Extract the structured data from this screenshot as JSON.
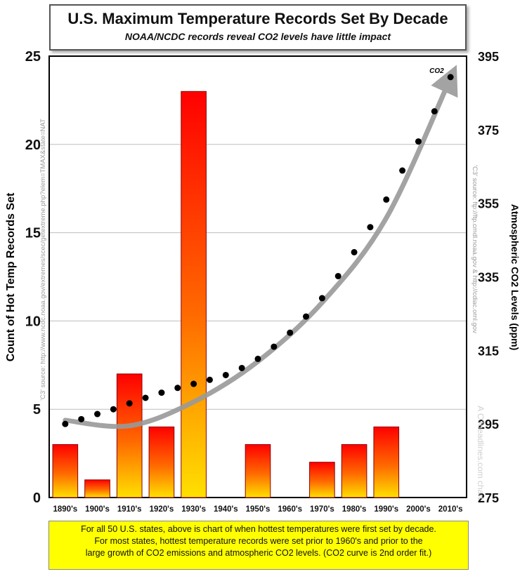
{
  "chart_data": {
    "type": "bar",
    "title": "U.S. Maximum Temperature Records Set By Decade",
    "subtitle": "NOAA/NCDC records reveal CO2 levels have little impact",
    "categories": [
      "1890's",
      "1900's",
      "1910's",
      "1920's",
      "1930's",
      "1940's",
      "1950's",
      "1960's",
      "1970's",
      "1980's",
      "1990's",
      "2000's",
      "2010's"
    ],
    "values": [
      3,
      1,
      7,
      4,
      23,
      0,
      3,
      0,
      2,
      3,
      4,
      0,
      0
    ],
    "ylabel": "Count of Hot Temp Records Set",
    "ylim": [
      0,
      25
    ],
    "yticks": [
      0,
      5,
      10,
      15,
      20,
      25
    ],
    "y2label": "Atmospheric CO2 Levels (ppm)",
    "y2lim": [
      275,
      395
    ],
    "y2ticks": [
      275,
      295,
      315,
      335,
      355,
      375,
      395
    ],
    "co2_label": "CO2",
    "co2_series": {
      "name": "CO2",
      "x": [
        0,
        0.5,
        1,
        1.5,
        2,
        2.5,
        3,
        3.5,
        4,
        4.5,
        5,
        5.5,
        6,
        6.5,
        7,
        7.5,
        8,
        8.5,
        9,
        9.5,
        10,
        10.5,
        11,
        11.5,
        12
      ],
      "values": [
        295.0,
        296.3,
        297.7,
        299.0,
        300.6,
        302.1,
        303.5,
        304.8,
        305.9,
        307.0,
        308.3,
        310.2,
        312.7,
        316.0,
        319.8,
        324.2,
        329.2,
        335.2,
        341.7,
        348.5,
        356.0,
        363.9,
        371.8,
        380.0,
        389.3
      ]
    },
    "fit_curve": {
      "name": "2nd order fit",
      "x": [
        0,
        2,
        4,
        6,
        8,
        10,
        12
      ],
      "values": [
        296,
        294.5,
        301,
        312,
        328,
        351,
        389
      ]
    },
    "source_left": "'C3' source: http://www.ncdc.noaa.gov/extremes/scec/getextreme.php?elem=TMAX&state=NAT",
    "source_right": "'C3' source: ftp://ftp.cmdl.noaa.gov & http://cdiac.ornl.gov",
    "watermark": "A C3headlines.com chart",
    "footnote": [
      "For all 50 U.S. states, above is chart of when hottest temperatures were first set by decade.",
      "For most states, hottest temperature records were set prior to 1960's and prior to the",
      "large growth of CO2 emissions and atmospheric CO2 levels. (CO2 curve is 2nd order fit.)"
    ],
    "colors": {
      "bar_top": "#ff0000",
      "bar_mid": "#ff6a00",
      "bar_bottom": "#ffdd00",
      "dots": "#000000",
      "arrow": "#999999",
      "note_bg": "#ffff00"
    }
  }
}
